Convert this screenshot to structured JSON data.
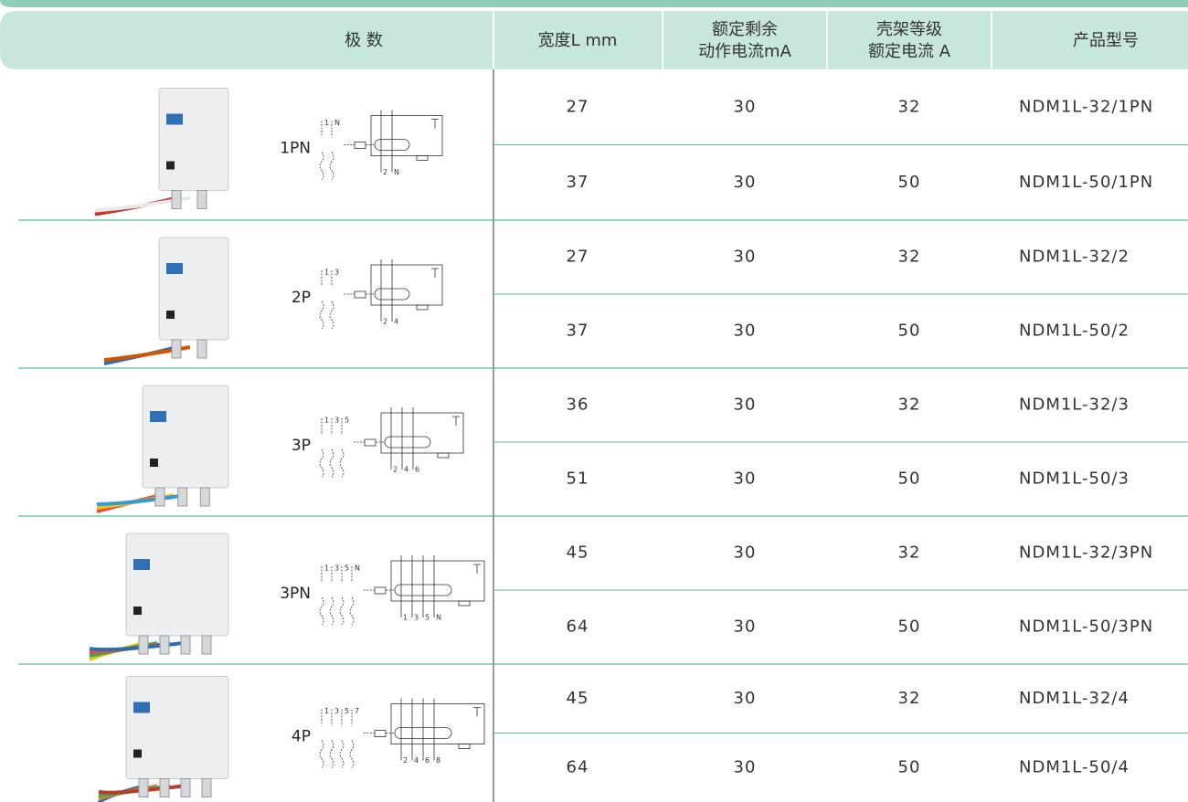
{
  "header": {
    "poles": "极 数",
    "width": "宽度L mm",
    "residual": [
      "额定剩余",
      "动作电流mA"
    ],
    "frame": [
      "壳架等级",
      "额定电流 A"
    ],
    "model": "产品型号"
  },
  "groups": [
    {
      "pole": "1PN",
      "diagram": {
        "top": [
          "1",
          "N"
        ],
        "bottom": [
          "2",
          "N"
        ]
      },
      "rows": [
        [
          27,
          30,
          32,
          "NDM1L-32/1PN"
        ],
        [
          37,
          30,
          50,
          "NDM1L-50/1PN"
        ]
      ]
    },
    {
      "pole": "2P",
      "diagram": {
        "top": [
          "1",
          "3"
        ],
        "bottom": [
          "2",
          "4"
        ]
      },
      "rows": [
        [
          27,
          30,
          32,
          "NDM1L-32/2"
        ],
        [
          37,
          30,
          50,
          "NDM1L-50/2"
        ]
      ]
    },
    {
      "pole": "3P",
      "diagram": {
        "top": [
          "1",
          "3",
          "5"
        ],
        "bottom": [
          "2",
          "4",
          "6"
        ]
      },
      "rows": [
        [
          36,
          30,
          32,
          "NDM1L-32/3"
        ],
        [
          51,
          30,
          50,
          "NDM1L-50/3"
        ]
      ]
    },
    {
      "pole": "3PN",
      "diagram": {
        "top": [
          "1",
          "3",
          "5",
          "N"
        ],
        "bottom": [
          "1",
          "3",
          "5",
          "N"
        ]
      },
      "rows": [
        [
          45,
          30,
          32,
          "NDM1L-32/3PN"
        ],
        [
          64,
          30,
          50,
          "NDM1L-50/3PN"
        ]
      ]
    },
    {
      "pole": "4P",
      "diagram": {
        "top": [
          "1",
          "3",
          "5",
          "7"
        ],
        "bottom": [
          "2",
          "4",
          "6",
          "8"
        ]
      },
      "rows": [
        [
          45,
          30,
          32,
          "NDM1L-32/4"
        ],
        [
          64,
          30,
          50,
          "NDM1L-50/4"
        ]
      ]
    }
  ]
}
